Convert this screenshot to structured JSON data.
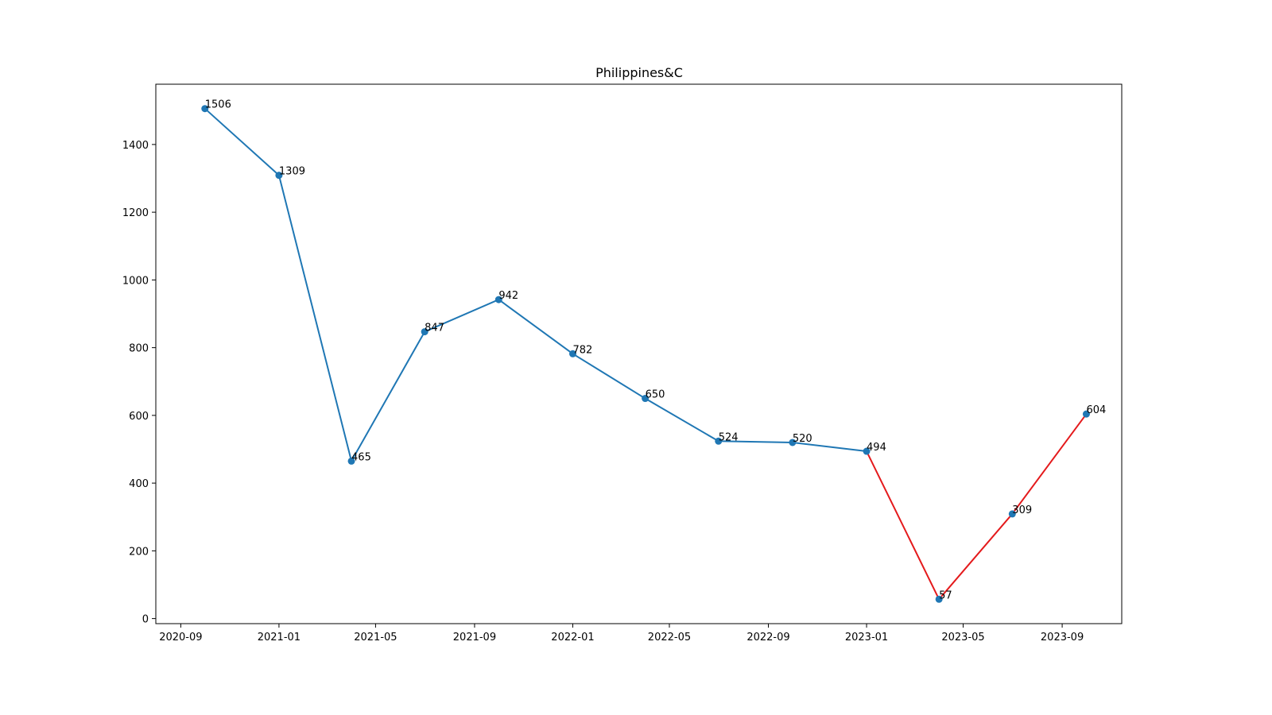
{
  "chart_data": {
    "type": "line",
    "title": "Philippines&C",
    "xlabel": "",
    "ylabel": "",
    "x_axis_type": "date",
    "xlim": [
      "2020-08-01",
      "2023-11-14"
    ],
    "ylim": [
      -15,
      1578
    ],
    "x_ticks": [
      "2020-09-01",
      "2021-01-01",
      "2021-05-01",
      "2021-09-01",
      "2022-01-01",
      "2022-05-01",
      "2022-09-01",
      "2023-01-01",
      "2023-05-01",
      "2023-09-01"
    ],
    "x_tick_labels": [
      "2020-09",
      "2021-01",
      "2021-05",
      "2021-09",
      "2022-01",
      "2022-05",
      "2022-09",
      "2023-01",
      "2023-05",
      "2023-09"
    ],
    "y_ticks": [
      0,
      200,
      400,
      600,
      800,
      1000,
      1200,
      1400
    ],
    "y_tick_labels": [
      "0",
      "200",
      "400",
      "600",
      "800",
      "1000",
      "1200",
      "1400"
    ],
    "grid": false,
    "series": [
      {
        "color": "#1f77b4",
        "points": [
          {
            "x": "2020-10-01",
            "y": 1506
          },
          {
            "x": "2021-01-01",
            "y": 1309
          },
          {
            "x": "2021-04-01",
            "y": 465
          },
          {
            "x": "2021-07-01",
            "y": 847
          },
          {
            "x": "2021-10-01",
            "y": 942
          },
          {
            "x": "2022-01-01",
            "y": 782
          },
          {
            "x": "2022-04-01",
            "y": 650
          },
          {
            "x": "2022-07-01",
            "y": 524
          },
          {
            "x": "2022-10-01",
            "y": 520
          },
          {
            "x": "2023-01-01",
            "y": 494
          }
        ]
      },
      {
        "color": "#e41a1c",
        "points": [
          {
            "x": "2023-01-01",
            "y": 494
          },
          {
            "x": "2023-04-01",
            "y": 57
          },
          {
            "x": "2023-07-01",
            "y": 309
          },
          {
            "x": "2023-10-01",
            "y": 604
          }
        ]
      }
    ],
    "marker_color": "#1f77b4",
    "data_labels": [
      {
        "x": "2020-10-01",
        "y": 1506,
        "text": "1506"
      },
      {
        "x": "2021-01-01",
        "y": 1309,
        "text": "1309"
      },
      {
        "x": "2021-04-01",
        "y": 465,
        "text": "465"
      },
      {
        "x": "2021-07-01",
        "y": 847,
        "text": "847"
      },
      {
        "x": "2021-10-01",
        "y": 942,
        "text": "942"
      },
      {
        "x": "2022-01-01",
        "y": 782,
        "text": "782"
      },
      {
        "x": "2022-04-01",
        "y": 650,
        "text": "650"
      },
      {
        "x": "2022-07-01",
        "y": 524,
        "text": "524"
      },
      {
        "x": "2022-10-01",
        "y": 520,
        "text": "520"
      },
      {
        "x": "2023-01-01",
        "y": 494,
        "text": "494"
      },
      {
        "x": "2023-04-01",
        "y": 57,
        "text": "57"
      },
      {
        "x": "2023-07-01",
        "y": 309,
        "text": "309"
      },
      {
        "x": "2023-10-01",
        "y": 604,
        "text": "604"
      }
    ]
  }
}
